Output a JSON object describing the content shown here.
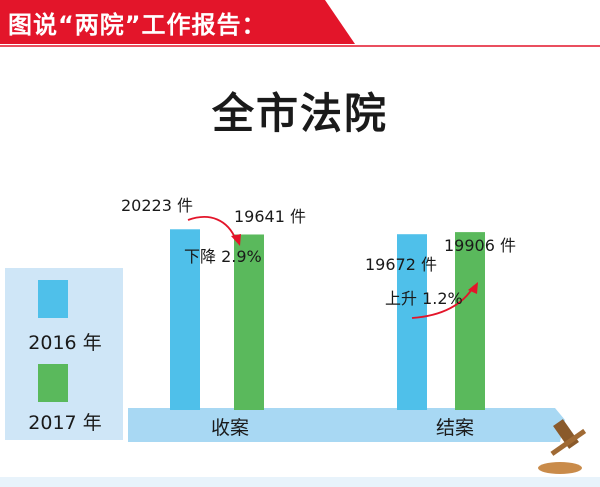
{
  "banner": {
    "text": "图说“两院”工作报告：",
    "bg_color": "#e3152a"
  },
  "main_title": "全市法院",
  "legend": [
    {
      "label": "2016 年",
      "color": "#4fc0ea"
    },
    {
      "label": "2017 年",
      "color": "#5ab95c"
    }
  ],
  "chart_data": {
    "type": "bar",
    "categories": [
      "收案",
      "结案"
    ],
    "series": [
      {
        "name": "2016 年",
        "values": [
          20223,
          19672
        ],
        "color": "#4fc0ea"
      },
      {
        "name": "2017 年",
        "values": [
          19641,
          19906
        ],
        "color": "#5ab95c"
      }
    ],
    "value_labels": [
      [
        "20223 件",
        "19641 件"
      ],
      [
        "19672 件",
        "19906 件"
      ]
    ],
    "annotations": [
      "下降 2.9%",
      "上升 1.2%"
    ],
    "ylim": [
      0,
      23500
    ],
    "grid": false,
    "legend_position": "left"
  }
}
